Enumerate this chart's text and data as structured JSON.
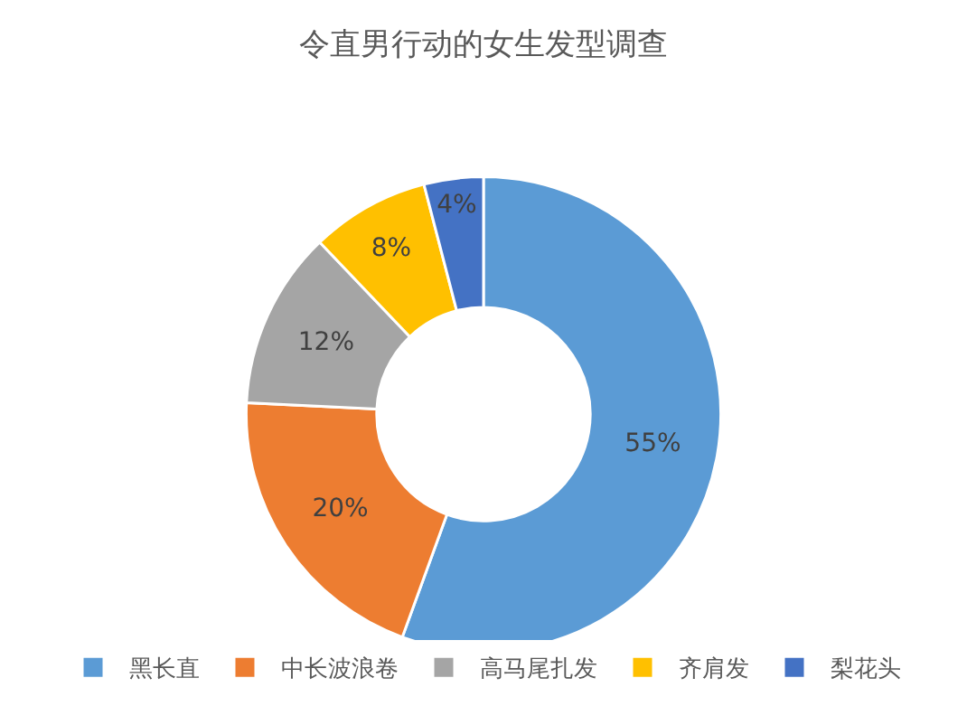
{
  "chart_data": {
    "type": "donut",
    "title": "令直男行动的女生发型调查",
    "categories": [
      "黑长直",
      "中长波浪卷",
      "高马尾扎发",
      "齐肩发",
      "梨花头"
    ],
    "values": [
      55,
      20,
      12,
      8,
      4
    ],
    "colors": [
      "#5b9bd5",
      "#ed7d31",
      "#a5a5a5",
      "#ffc000",
      "#4472c4"
    ],
    "value_labels": [
      "55%",
      "20%",
      "12%",
      "8%",
      "4%"
    ],
    "legend": "bottom"
  }
}
